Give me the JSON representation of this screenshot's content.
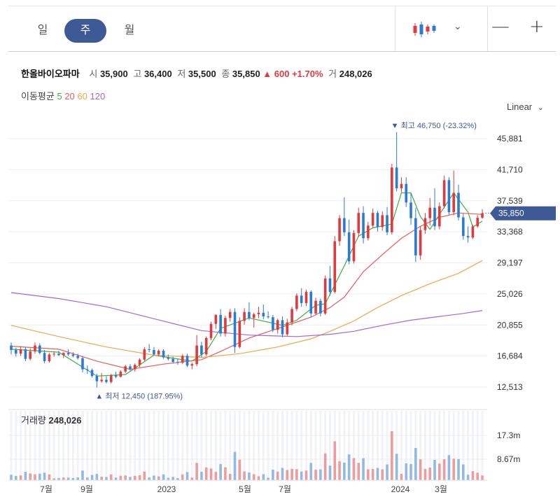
{
  "tabs": [
    {
      "label": "일",
      "active": false
    },
    {
      "label": "주",
      "active": true
    },
    {
      "label": "월",
      "active": false
    }
  ],
  "zoom": {
    "minus": "—",
    "plus": "+"
  },
  "chevron": "⌄",
  "quote": {
    "name": "한올바이오파마",
    "open_label": "시",
    "open": "35,900",
    "high_label": "고",
    "high": "36,400",
    "low_label": "저",
    "low": "35,500",
    "close_label": "종",
    "close": "35,850",
    "change": "▲ 600 +1.70%",
    "volume_label": "거",
    "volume": "248,026"
  },
  "ma_legend": {
    "label": "이동평균",
    "periods": [
      {
        "label": "5",
        "color": "#3cb043"
      },
      {
        "label": "20",
        "color": "#e85c5c"
      },
      {
        "label": "60",
        "color": "#f0a54a"
      },
      {
        "label": "120",
        "color": "#a467d6"
      }
    ]
  },
  "scale_label": "Linear",
  "chart_data": {
    "type": "candlestick",
    "y_ticks": [
      "45,881",
      "41,710",
      "37,539",
      "33,368",
      "29,197",
      "25,026",
      "20,855",
      "16,684",
      "12,513"
    ],
    "ylim": [
      11000,
      49000
    ],
    "x_ticks": [
      "7월",
      "9월",
      "2023",
      "5월",
      "7월",
      "2024",
      "3월"
    ],
    "current_price": "35,850",
    "max_annotation": {
      "text": "▼ 최고 46,750 (-23.32%)",
      "value": 46750
    },
    "min_annotation": {
      "text": "▲ 최저 12,450 (187.95%)",
      "value": 12450
    },
    "volume_label": "거래량",
    "volume_value": "248,026",
    "volume_ticks": [
      "17.3m",
      "8.67m"
    ],
    "up_color": "#e0393e",
    "down_color": "#2a7bd6",
    "candles": [
      [
        18100,
        18500,
        16900,
        17500
      ],
      [
        17500,
        17800,
        16600,
        17000
      ],
      [
        17000,
        18000,
        16700,
        17600
      ],
      [
        17600,
        17900,
        16000,
        16300
      ],
      [
        16300,
        17700,
        16100,
        17300
      ],
      [
        17300,
        18500,
        17000,
        18100
      ],
      [
        18100,
        18400,
        16900,
        17100
      ],
      [
        17100,
        17500,
        15700,
        16000
      ],
      [
        16000,
        17100,
        15800,
        16900
      ],
      [
        16900,
        17300,
        16600,
        17000
      ],
      [
        17000,
        17400,
        16700,
        16800
      ],
      [
        16800,
        17200,
        16400,
        17100
      ],
      [
        17100,
        17600,
        16700,
        16900
      ],
      [
        16900,
        17200,
        16500,
        16700
      ],
      [
        16700,
        17000,
        16200,
        16400
      ],
      [
        16400,
        16700,
        14500,
        14900
      ],
      [
        14900,
        15400,
        14300,
        14800
      ],
      [
        14800,
        15000,
        13800,
        14000
      ],
      [
        14000,
        14300,
        12450,
        13300
      ],
      [
        13300,
        14400,
        13100,
        13500
      ],
      [
        13500,
        14000,
        13000,
        13200
      ],
      [
        13200,
        14300,
        13000,
        14100
      ],
      [
        14100,
        14600,
        13700,
        13900
      ],
      [
        13900,
        14800,
        13800,
        14600
      ],
      [
        14600,
        15500,
        14400,
        15300
      ],
      [
        15300,
        15600,
        14700,
        14900
      ],
      [
        14900,
        15700,
        14600,
        15500
      ],
      [
        15500,
        16400,
        15200,
        16200
      ],
      [
        16200,
        17900,
        16000,
        17600
      ],
      [
        17600,
        18300,
        17200,
        17500
      ],
      [
        17500,
        17900,
        16700,
        16900
      ],
      [
        16900,
        17600,
        16600,
        17400
      ],
      [
        17400,
        17600,
        16300,
        16500
      ],
      [
        16500,
        16900,
        16100,
        16300
      ],
      [
        16300,
        16600,
        15700,
        15900
      ],
      [
        15900,
        16300,
        15500,
        15800
      ],
      [
        15800,
        16900,
        15600,
        16700
      ],
      [
        16700,
        17000,
        15200,
        15400
      ],
      [
        15400,
        15800,
        14900,
        15600
      ],
      [
        15600,
        19500,
        15300,
        18100
      ],
      [
        18100,
        18600,
        16500,
        16900
      ],
      [
        16900,
        19300,
        16700,
        19100
      ],
      [
        19100,
        21300,
        18800,
        21000
      ],
      [
        21000,
        22300,
        20300,
        22200
      ],
      [
        22200,
        23000,
        19300,
        19700
      ],
      [
        19700,
        22100,
        19300,
        21800
      ],
      [
        21800,
        23000,
        21300,
        22600
      ],
      [
        22600,
        23100,
        17100,
        17900
      ],
      [
        17900,
        21900,
        17700,
        21400
      ],
      [
        21400,
        23100,
        20900,
        22600
      ],
      [
        22600,
        23900,
        21500,
        21800
      ],
      [
        21800,
        22500,
        20500,
        22300
      ],
      [
        22300,
        23300,
        21800,
        22500
      ],
      [
        22500,
        23600,
        21600,
        22000
      ],
      [
        22000,
        22700,
        21700,
        21900
      ],
      [
        21900,
        22200,
        19900,
        20200
      ],
      [
        20200,
        21700,
        19700,
        21500
      ],
      [
        21500,
        22000,
        19200,
        19600
      ],
      [
        19600,
        21700,
        19400,
        21200
      ],
      [
        21200,
        23300,
        20800,
        23000
      ],
      [
        23000,
        25100,
        22700,
        24800
      ],
      [
        24800,
        25800,
        23300,
        23800
      ],
      [
        23800,
        25600,
        23400,
        25300
      ],
      [
        25300,
        25500,
        21900,
        22400
      ],
      [
        22400,
        24500,
        22200,
        24100
      ],
      [
        24100,
        24400,
        22000,
        22400
      ],
      [
        22400,
        27500,
        22200,
        27100
      ],
      [
        27100,
        28800,
        24800,
        25300
      ],
      [
        25300,
        32800,
        25100,
        32100
      ],
      [
        32100,
        35600,
        31500,
        35200
      ],
      [
        35200,
        38000,
        32800,
        33300
      ],
      [
        33300,
        35000,
        29000,
        29400
      ],
      [
        29400,
        33600,
        29100,
        33200
      ],
      [
        33200,
        36600,
        32700,
        35900
      ],
      [
        35900,
        36800,
        31800,
        32500
      ],
      [
        32500,
        34700,
        32200,
        34200
      ],
      [
        34200,
        36500,
        33900,
        35900
      ],
      [
        35900,
        36200,
        33400,
        34000
      ],
      [
        34000,
        36100,
        33500,
        35600
      ],
      [
        35600,
        36700,
        32900,
        33300
      ],
      [
        33300,
        42500,
        33000,
        42000
      ],
      [
        42000,
        46750,
        38800,
        39200
      ],
      [
        39200,
        40700,
        38700,
        39800
      ],
      [
        39800,
        40700,
        36700,
        37300
      ],
      [
        37300,
        38600,
        34300,
        35200
      ],
      [
        35200,
        36600,
        29300,
        30200
      ],
      [
        30200,
        34100,
        29600,
        33600
      ],
      [
        33600,
        35900,
        33100,
        35200
      ],
      [
        35200,
        37900,
        34200,
        36600
      ],
      [
        36600,
        39200,
        33600,
        34100
      ],
      [
        34100,
        37300,
        33700,
        36800
      ],
      [
        36800,
        40900,
        36500,
        40300
      ],
      [
        40300,
        40700,
        35600,
        36000
      ],
      [
        36000,
        41600,
        35600,
        38600
      ],
      [
        38600,
        39700,
        34900,
        35300
      ],
      [
        35300,
        35800,
        32300,
        32800
      ],
      [
        32800,
        34100,
        31900,
        32600
      ],
      [
        32600,
        34300,
        32400,
        34100
      ],
      [
        34100,
        35600,
        33900,
        35250
      ],
      [
        35250,
        36400,
        35100,
        35850
      ]
    ],
    "ma_lines": [
      {
        "period": 5,
        "color": "#3cb043",
        "points": [
          [
            0,
            17600
          ],
          [
            10,
            17200
          ],
          [
            18,
            14000
          ],
          [
            24,
            14200
          ],
          [
            30,
            16800
          ],
          [
            38,
            16000
          ],
          [
            41,
            17300
          ],
          [
            44,
            20400
          ],
          [
            50,
            21800
          ],
          [
            57,
            20800
          ],
          [
            60,
            21500
          ],
          [
            64,
            23500
          ],
          [
            66,
            23700
          ],
          [
            70,
            28800
          ],
          [
            73,
            32800
          ],
          [
            76,
            33900
          ],
          [
            80,
            34400
          ],
          [
            82,
            38600
          ],
          [
            84,
            38600
          ],
          [
            86,
            35400
          ],
          [
            88,
            33700
          ],
          [
            90,
            35700
          ],
          [
            93,
            38600
          ],
          [
            96,
            36000
          ],
          [
            97,
            34000
          ],
          [
            99,
            34800
          ]
        ]
      },
      {
        "period": 20,
        "color": "#e85c5c",
        "points": [
          [
            0,
            18000
          ],
          [
            10,
            17600
          ],
          [
            18,
            16000
          ],
          [
            25,
            14900
          ],
          [
            32,
            15600
          ],
          [
            40,
            16200
          ],
          [
            44,
            17300
          ],
          [
            50,
            19100
          ],
          [
            57,
            20600
          ],
          [
            63,
            21900
          ],
          [
            67,
            23200
          ],
          [
            70,
            24600
          ],
          [
            74,
            28000
          ],
          [
            78,
            30300
          ],
          [
            82,
            32500
          ],
          [
            86,
            34100
          ],
          [
            90,
            35300
          ],
          [
            94,
            35900
          ],
          [
            99,
            35700
          ]
        ]
      },
      {
        "period": 60,
        "color": "#f0a54a",
        "points": [
          [
            0,
            20800
          ],
          [
            10,
            19300
          ],
          [
            20,
            17900
          ],
          [
            30,
            16800
          ],
          [
            40,
            16500
          ],
          [
            48,
            17000
          ],
          [
            56,
            17900
          ],
          [
            63,
            19000
          ],
          [
            67,
            20000
          ],
          [
            72,
            21400
          ],
          [
            77,
            23200
          ],
          [
            82,
            24800
          ],
          [
            88,
            26400
          ],
          [
            94,
            27800
          ],
          [
            99,
            29500
          ]
        ]
      },
      {
        "period": 120,
        "color": "#a467d6",
        "points": [
          [
            0,
            25200
          ],
          [
            10,
            24400
          ],
          [
            20,
            23300
          ],
          [
            30,
            21700
          ],
          [
            40,
            20100
          ],
          [
            50,
            19500
          ],
          [
            60,
            19300
          ],
          [
            67,
            19600
          ],
          [
            72,
            20000
          ],
          [
            78,
            20800
          ],
          [
            84,
            21500
          ],
          [
            90,
            22000
          ],
          [
            95,
            22400
          ],
          [
            99,
            22800
          ]
        ]
      }
    ]
  }
}
